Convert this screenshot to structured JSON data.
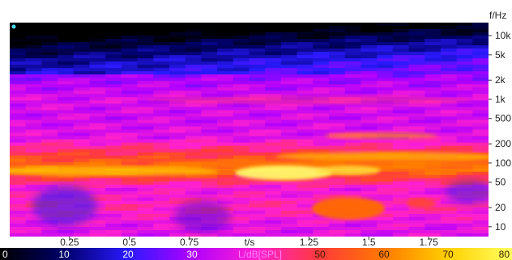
{
  "chart_data": {
    "type": "heatmap",
    "title": "",
    "xlabel": "t/s",
    "ylabel": "f/Hz",
    "colorbar_label": "L/dB[SPL]",
    "x_range": [
      0,
      2.0
    ],
    "x_ticks": [
      {
        "value": 0.25,
        "label": "0.25"
      },
      {
        "value": 0.5,
        "label": "0.5"
      },
      {
        "value": 0.75,
        "label": "0.75"
      },
      {
        "value": 1.25,
        "label": "1.25"
      },
      {
        "value": 1.5,
        "label": "1.5"
      },
      {
        "value": 1.75,
        "label": "1.75"
      }
    ],
    "y_scale": "log",
    "y_range": [
      7,
      16000
    ],
    "y_ticks": [
      {
        "value": 10000,
        "label": "10k"
      },
      {
        "value": 5000,
        "label": "5k"
      },
      {
        "value": 2000,
        "label": "2k"
      },
      {
        "value": 1000,
        "label": "1k"
      },
      {
        "value": 500,
        "label": "500"
      },
      {
        "value": 200,
        "label": "200"
      },
      {
        "value": 100,
        "label": "100"
      },
      {
        "value": 50,
        "label": "50"
      },
      {
        "value": 20,
        "label": "20"
      },
      {
        "value": 10,
        "label": "10"
      }
    ],
    "colorbar": {
      "range": [
        0,
        80
      ],
      "ticks": [
        "0",
        "10",
        "20",
        "30",
        "50",
        "60",
        "70",
        "80"
      ],
      "stops": [
        "#000000",
        "#00006a",
        "#2a1aff",
        "#b000ff",
        "#ff20d0",
        "#ff3a3a",
        "#ff7a00",
        "#ffd000",
        "#ffff60"
      ]
    },
    "level_profile_db": [
      {
        "freq_hz": 14000,
        "level": 2
      },
      {
        "freq_hz": 8000,
        "level": 14
      },
      {
        "freq_hz": 4000,
        "level": 24
      },
      {
        "freq_hz": 2000,
        "level": 30
      },
      {
        "freq_hz": 1000,
        "level": 35
      },
      {
        "freq_hz": 500,
        "level": 34
      },
      {
        "freq_hz": 250,
        "level": 36
      },
      {
        "freq_hz": 150,
        "level": 48
      },
      {
        "freq_hz": 80,
        "level": 60
      },
      {
        "freq_hz": 40,
        "level": 38
      },
      {
        "freq_hz": 20,
        "level": 42
      },
      {
        "freq_hz": 10,
        "level": 36
      }
    ]
  }
}
